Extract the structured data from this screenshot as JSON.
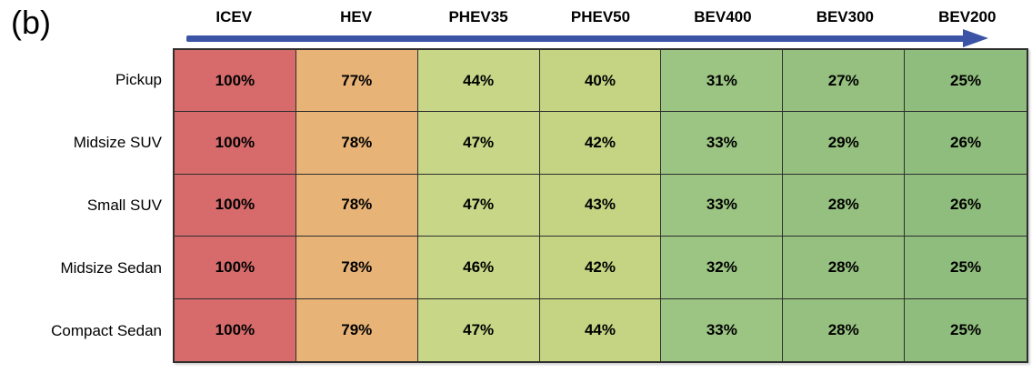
{
  "figure_label": "(b)",
  "chart_data": {
    "type": "heatmap",
    "title": "",
    "columns": [
      "ICEV",
      "HEV",
      "PHEV35",
      "PHEV50",
      "BEV400",
      "BEV300",
      "BEV200"
    ],
    "rows": [
      "Pickup",
      "Midsize SUV",
      "Small SUV",
      "Midsize Sedan",
      "Compact Sedan"
    ],
    "values": [
      [
        100,
        77,
        44,
        40,
        31,
        27,
        25
      ],
      [
        100,
        78,
        47,
        42,
        33,
        29,
        26
      ],
      [
        100,
        78,
        47,
        43,
        33,
        28,
        26
      ],
      [
        100,
        78,
        46,
        42,
        32,
        28,
        25
      ],
      [
        100,
        79,
        47,
        44,
        33,
        28,
        25
      ]
    ],
    "unit": "%",
    "value_range": [
      25,
      100
    ],
    "column_colors": [
      "#d76b6b",
      "#e8b377",
      "#c7d787",
      "#c4d483",
      "#9cc583",
      "#96c080",
      "#8fbd7d"
    ],
    "arrow": {
      "direction": "right",
      "color": "#3b54a5"
    },
    "border_color": "#2f2f2f",
    "legend_position": "none",
    "grid": true
  }
}
